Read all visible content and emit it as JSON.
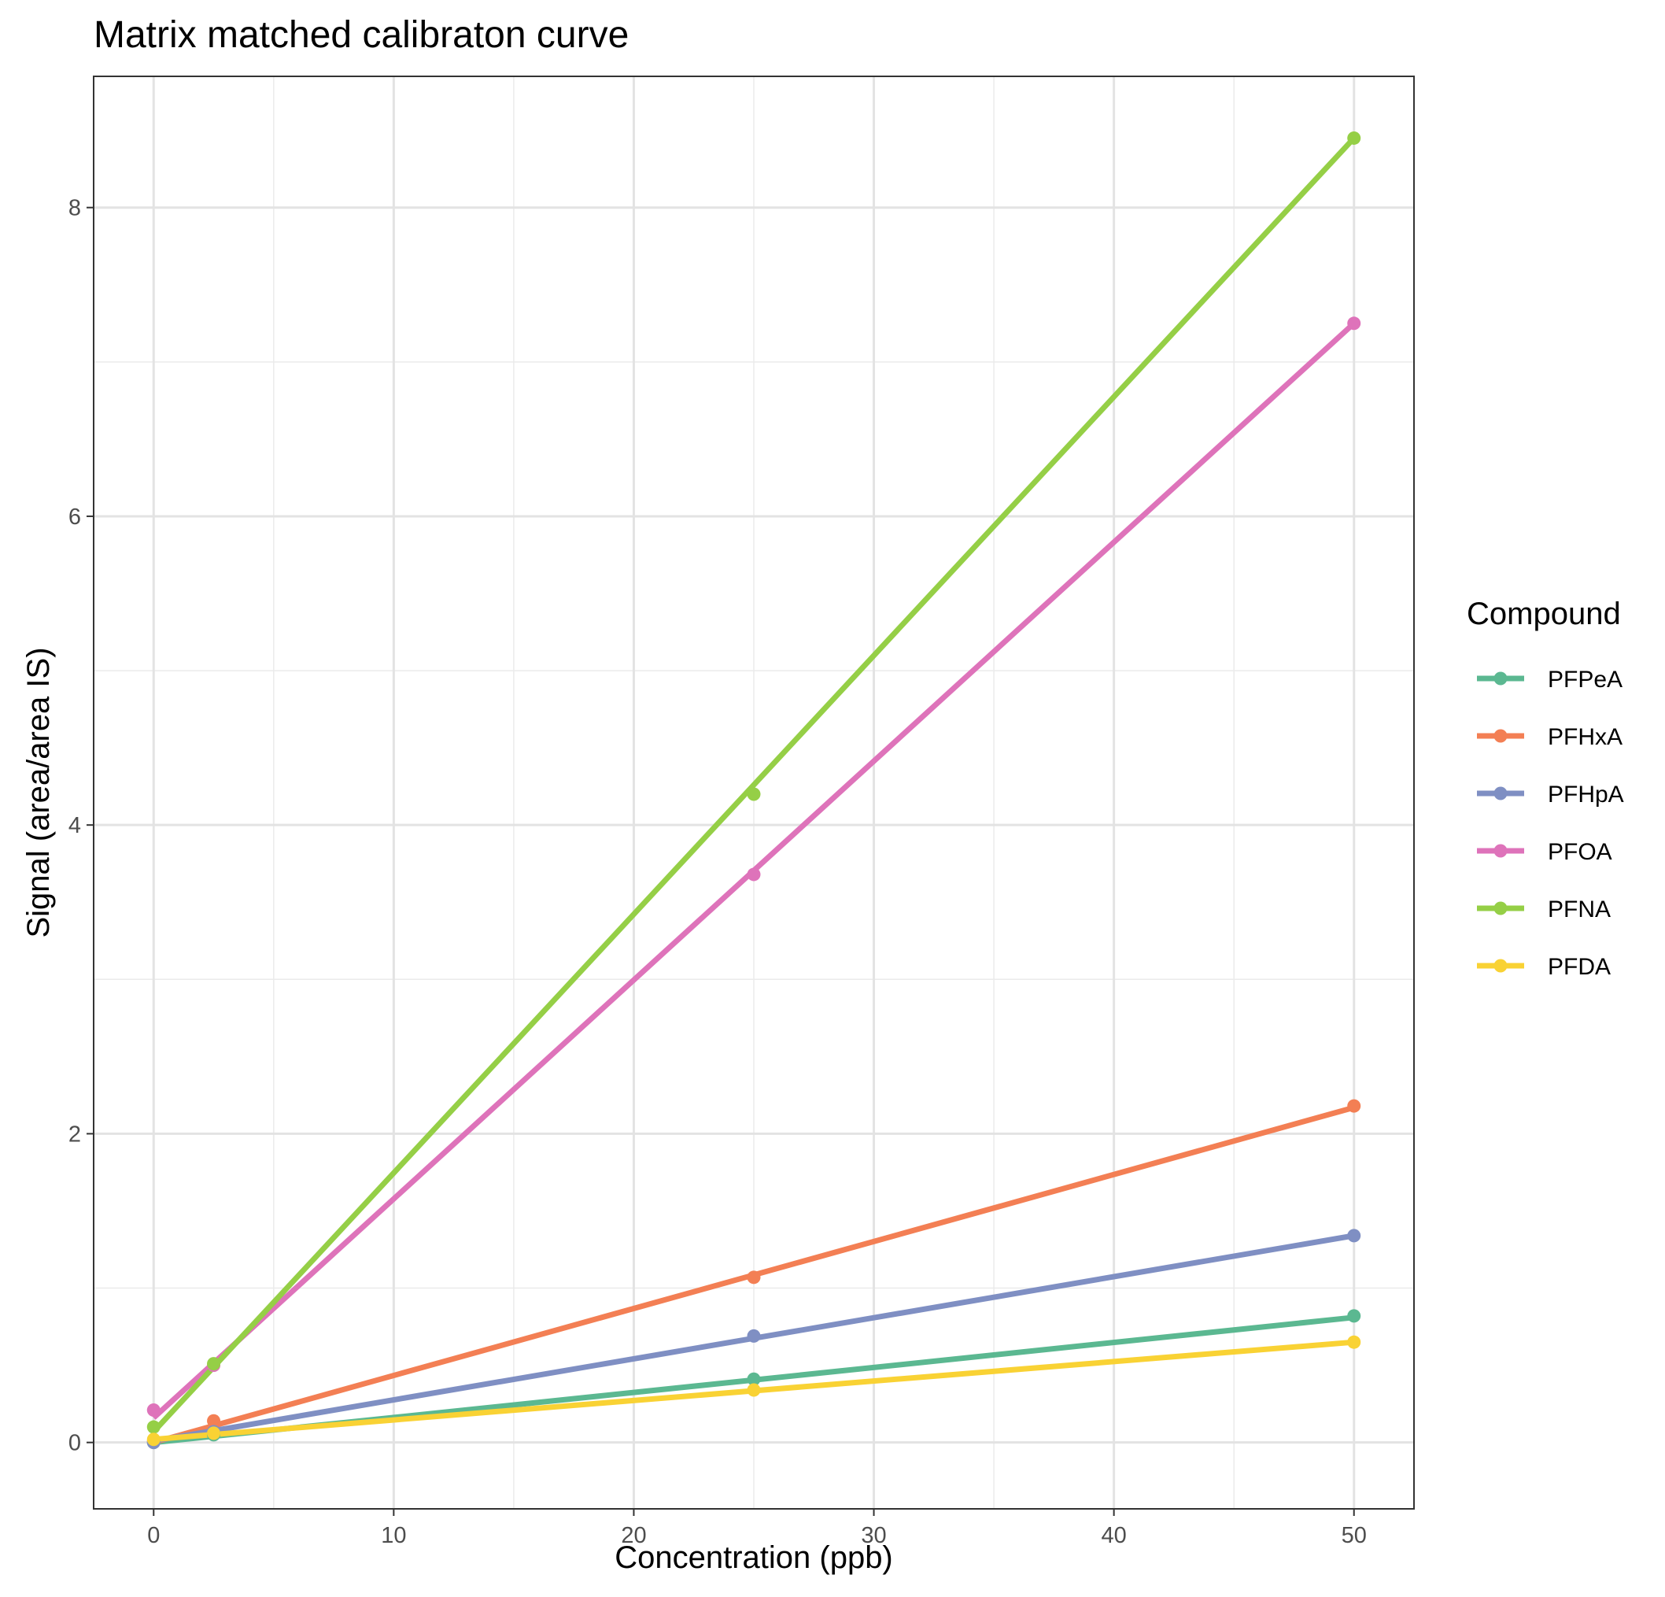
{
  "chart_data": {
    "type": "line",
    "title": "Matrix matched calibraton curve",
    "xlabel": "Concentration (ppb)",
    "ylabel": "Signal (area/area IS)",
    "xlim": [
      -2.5,
      52.5
    ],
    "ylim": [
      -0.43,
      8.85
    ],
    "x_ticks": [
      0,
      10,
      20,
      30,
      40,
      50
    ],
    "y_ticks": [
      0,
      2,
      4,
      6,
      8
    ],
    "grid": true,
    "legend": {
      "title": "Compound",
      "position": "right"
    },
    "series": [
      {
        "name": "PFPeA",
        "color": "#5BB891",
        "points": [
          [
            0,
            0.0
          ],
          [
            2.5,
            0.05
          ],
          [
            25,
            0.41
          ],
          [
            50,
            0.82
          ]
        ],
        "fit": [
          [
            0,
            0.0
          ],
          [
            50,
            0.81
          ]
        ]
      },
      {
        "name": "PFHxA",
        "color": "#F37F54",
        "points": [
          [
            0,
            0.01
          ],
          [
            2.5,
            0.14
          ],
          [
            25,
            1.07
          ],
          [
            50,
            2.18
          ]
        ],
        "fit": [
          [
            0,
            0.0
          ],
          [
            50,
            2.17
          ]
        ]
      },
      {
        "name": "PFHpA",
        "color": "#7F8FC3",
        "points": [
          [
            0,
            0.0
          ],
          [
            2.5,
            0.07
          ],
          [
            25,
            0.69
          ],
          [
            50,
            1.34
          ]
        ],
        "fit": [
          [
            0,
            0.01
          ],
          [
            50,
            1.34
          ]
        ]
      },
      {
        "name": "PFOA",
        "color": "#DE73BA",
        "points": [
          [
            0,
            0.21
          ],
          [
            2.5,
            0.5
          ],
          [
            25,
            3.68
          ],
          [
            50,
            7.25
          ]
        ],
        "fit": [
          [
            0,
            0.16
          ],
          [
            50,
            7.25
          ]
        ]
      },
      {
        "name": "PFNA",
        "color": "#95CF46",
        "points": [
          [
            0,
            0.1
          ],
          [
            2.5,
            0.51
          ],
          [
            25,
            4.2
          ],
          [
            50,
            8.45
          ]
        ],
        "fit": [
          [
            0,
            0.07
          ],
          [
            50,
            8.45
          ]
        ]
      },
      {
        "name": "PFDA",
        "color": "#F9D234",
        "points": [
          [
            0,
            0.02
          ],
          [
            2.5,
            0.06
          ],
          [
            25,
            0.34
          ],
          [
            50,
            0.65
          ]
        ],
        "fit": [
          [
            0,
            0.02
          ],
          [
            50,
            0.65
          ]
        ]
      }
    ]
  }
}
